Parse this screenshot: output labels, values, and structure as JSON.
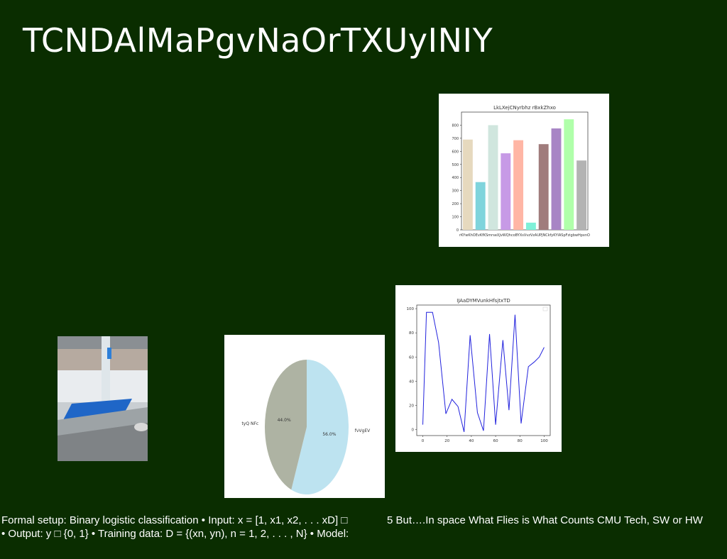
{
  "slide": {
    "title": "TCNDAlMaPgvNaOrTXUyINIY",
    "note_left_1": "Formal setup: Binary logistic classification • Input: x = [1, x1, x2, . . . xD] □",
    "note_left_2": "• Output: y □ {0, 1} • Training data: D = {(xn, yn), n = 1, 2, . . . , N} • Model:",
    "note_right": "5 But….In space What Flies is What Counts CMU Tech, SW or HW"
  },
  "chart_data": [
    {
      "type": "bar",
      "title": "LkLXejCNyrbhz rBxkZhxo",
      "categories": [
        "rKYwKh",
        "bvKfKS",
        "mseXJ",
        "vWQhco",
        "bXYXsa",
        "hzVzAU",
        "jYNCkf",
        "yKYIAS",
        "rfFzgjbw",
        "uHpxnO"
      ],
      "tick_labels_shown": "rKYwKhOEvKfKSmrseXJvWQhcoBYXsVvzVzAUPJNCkfyKYIASpFzigbwHpxnO",
      "values": [
        690,
        365,
        800,
        585,
        685,
        55,
        655,
        775,
        845,
        530
      ],
      "colors": [
        "#e6d9be",
        "#7fd4dc",
        "#d0e6de",
        "#c79ae6",
        "#ffb6a5",
        "#7ff0d8",
        "#a07c7c",
        "#a885c5",
        "#b0ffaa",
        "#b3b3b3"
      ],
      "ylim": [
        0,
        900
      ],
      "yticks": [
        0,
        100,
        200,
        300,
        400,
        500,
        600,
        700,
        800
      ],
      "xlabel": "",
      "ylabel": "",
      "grid": false
    },
    {
      "type": "pie",
      "title": "",
      "labels": [
        "fvVgEV",
        "tyQ NFc"
      ],
      "values": [
        56.0,
        44.0
      ],
      "pct_labels": [
        "56.0%",
        "44.0%"
      ],
      "colors": [
        "#bde3f0",
        "#aeb3a3"
      ]
    },
    {
      "type": "line",
      "title": "IJAaDYMVunkHfsjtxTD",
      "x": [
        0,
        3,
        8,
        13,
        19,
        24,
        29,
        34,
        39,
        45,
        50,
        55,
        60,
        66,
        71,
        76,
        81,
        87,
        92,
        96,
        100
      ],
      "y": [
        4,
        97,
        97,
        72,
        13,
        25,
        19,
        -2,
        78,
        14,
        -1,
        79,
        4,
        74,
        16,
        95,
        5,
        52,
        56,
        60,
        68
      ],
      "color": "#2222dd",
      "xlim": [
        -5,
        105
      ],
      "ylim": [
        -5,
        103
      ],
      "xticks": [
        0,
        20,
        40,
        60,
        80,
        100
      ],
      "yticks": [
        0,
        20,
        40,
        60,
        80,
        100
      ],
      "xlabel": "",
      "ylabel": "",
      "grid": false
    }
  ]
}
